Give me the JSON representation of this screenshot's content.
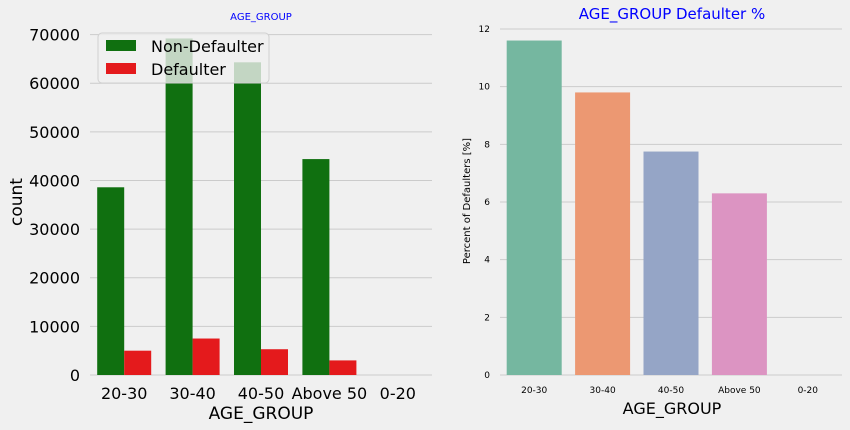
{
  "chart_data": [
    {
      "type": "bar",
      "title": "AGE_GROUP",
      "title_color": "#0000ff",
      "xlabel": "AGE_GROUP",
      "ylabel": "count",
      "categories": [
        "20-30",
        "30-40",
        "40-50",
        "Above 50",
        "0-20"
      ],
      "ylim": [
        0,
        73000
      ],
      "yticks": [
        "0",
        "10000",
        "20000",
        "30000",
        "40000",
        "50000",
        "60000",
        "70000"
      ],
      "grid": "horizontal",
      "legend_position": "top-left",
      "series": [
        {
          "name": "Non-Defaulter",
          "color": "#107010",
          "values": [
            38600,
            69200,
            64300,
            44400,
            0
          ]
        },
        {
          "name": "Defaulter",
          "color": "#e41a1c",
          "values": [
            5000,
            7500,
            5300,
            3000,
            0
          ]
        }
      ]
    },
    {
      "type": "bar",
      "title": "AGE_GROUP Defaulter %",
      "title_color": "#0000ff",
      "xlabel": "AGE_GROUP",
      "ylabel": "Percent of Defaulters [%]",
      "categories": [
        "20-30",
        "30-40",
        "40-50",
        "Above 50",
        "0-20"
      ],
      "values": [
        11.6,
        9.8,
        7.75,
        6.3,
        0
      ],
      "colors": [
        "#75b7a0",
        "#ec9872",
        "#95a5c6",
        "#dc94c2",
        "#a6d854"
      ],
      "ylim": [
        0,
        12
      ],
      "yticks": [
        "0",
        "2",
        "4",
        "6",
        "8",
        "10",
        "12"
      ],
      "grid": "horizontal"
    }
  ]
}
